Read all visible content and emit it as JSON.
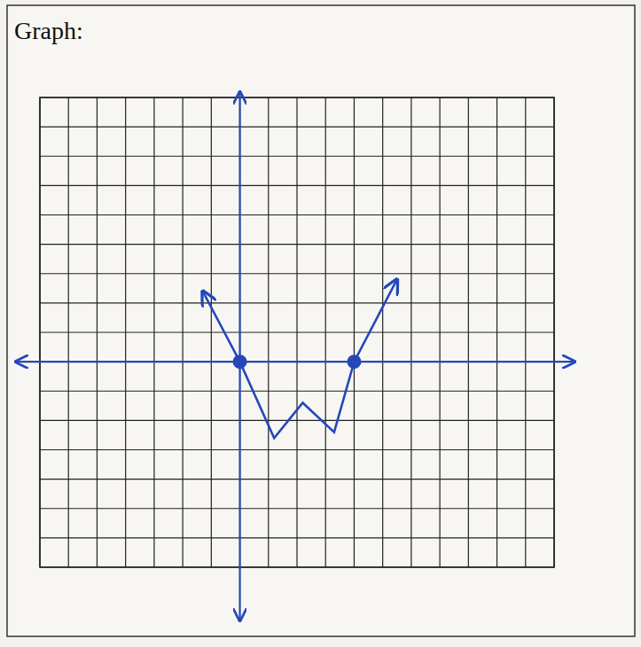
{
  "chart_data": {
    "type": "line",
    "title": "Graph:",
    "x": [
      -1.3,
      0,
      1.2,
      2.2,
      3.3,
      4,
      5.5
    ],
    "values": [
      2.4,
      0,
      -2.6,
      -1.4,
      -2.4,
      0,
      2.8
    ],
    "color": "#2548b8",
    "xlim": [
      -7,
      11
    ],
    "ylim": [
      -7,
      9
    ],
    "xticks": [
      -7,
      -6,
      -5,
      -4,
      -3,
      -2,
      -1,
      0,
      1,
      2,
      3,
      4,
      5,
      6,
      7,
      8,
      9,
      10,
      11
    ],
    "yticks": [
      -7,
      -6,
      -5,
      -4,
      -3,
      -2,
      -1,
      0,
      1,
      2,
      3,
      4,
      5,
      6,
      7,
      8,
      9
    ],
    "grid": true,
    "tick_labels": false
  }
}
